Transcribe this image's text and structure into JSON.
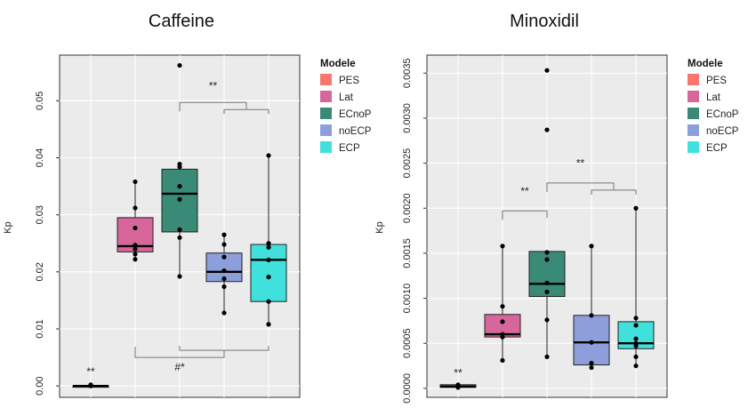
{
  "legend_title": "Modele",
  "legend_items": [
    {
      "label": "PES",
      "color": "#F8766D"
    },
    {
      "label": "Lat",
      "color": "#D7679A"
    },
    {
      "label": "ECnoP",
      "color": "#3A8A78"
    },
    {
      "label": "noECP",
      "color": "#8C9FDB"
    },
    {
      "label": "ECP",
      "color": "#40E0DC"
    }
  ],
  "chart_data": [
    {
      "type": "box",
      "title": "Caffeine",
      "ylabel": "Kp",
      "ylim": [
        -0.002,
        0.058
      ],
      "yticks": [
        0.0,
        0.01,
        0.02,
        0.03,
        0.04,
        0.05
      ],
      "ytick_labels": [
        "0.00",
        "0.01",
        "0.02",
        "0.03",
        "0.04",
        "0.05"
      ],
      "grid": true,
      "legend_position": "right",
      "categories": [
        "PES",
        "Lat",
        "ECnoP",
        "noECP",
        "ECP"
      ],
      "boxes": [
        {
          "name": "PES",
          "q1": 0.0,
          "median": 0.0,
          "q3": 0.0,
          "whisker_low": 0.0,
          "whisker_high": 0.0,
          "points": [
            0.0,
            0.0002
          ]
        },
        {
          "name": "Lat",
          "q1": 0.0235,
          "median": 0.0245,
          "q3": 0.0295,
          "whisker_low": 0.0222,
          "whisker_high": 0.0358,
          "points": [
            0.0358,
            0.0312,
            0.0277,
            0.0247,
            0.024,
            0.0231,
            0.0222
          ]
        },
        {
          "name": "ECnoP",
          "q1": 0.027,
          "median": 0.0337,
          "q3": 0.038,
          "whisker_low": 0.0192,
          "whisker_high": 0.0389,
          "points": [
            0.0562,
            0.0389,
            0.0384,
            0.035,
            0.0327,
            0.0274,
            0.026,
            0.0192
          ]
        },
        {
          "name": "noECP",
          "q1": 0.0183,
          "median": 0.02,
          "q3": 0.0233,
          "whisker_low": 0.0128,
          "whisker_high": 0.0265,
          "points": [
            0.0265,
            0.0248,
            0.0226,
            0.0202,
            0.0188,
            0.0174,
            0.0128
          ]
        },
        {
          "name": "ECP",
          "q1": 0.0148,
          "median": 0.0221,
          "q3": 0.0248,
          "whisker_low": 0.0108,
          "whisker_high": 0.0404,
          "points": [
            0.0404,
            0.025,
            0.0243,
            0.0221,
            0.0191,
            0.0148,
            0.0108
          ]
        }
      ],
      "annotations": [
        {
          "text": "**",
          "kind": "label",
          "x": 0,
          "y": 0.0019
        },
        {
          "text": "**",
          "kind": "bracket",
          "from": 2,
          "to": [
            3,
            4
          ],
          "y": 0.0497,
          "label_y": 0.052
        },
        {
          "text": "#*",
          "kind": "bracket_below",
          "from": 1,
          "to": [
            2,
            3,
            4
          ],
          "y": 0.005,
          "label_y": 0.0027
        }
      ]
    },
    {
      "type": "box",
      "title": "Minoxidil",
      "ylabel": "Kp",
      "ylim": [
        -0.0001,
        0.0037
      ],
      "yticks": [
        0.0,
        0.0005,
        0.001,
        0.0015,
        0.002,
        0.0025,
        0.003,
        0.0035
      ],
      "ytick_labels": [
        "0.0000",
        "0.0005",
        "0.0010",
        "0.0015",
        "0.0020",
        "0.0025",
        "0.0030",
        "0.0035"
      ],
      "grid": true,
      "legend_position": "right",
      "categories": [
        "PES",
        "Lat",
        "ECnoP",
        "noECP",
        "ECP"
      ],
      "boxes": [
        {
          "name": "PES",
          "q1": 1e-05,
          "median": 2e-05,
          "q3": 4e-05,
          "whisker_low": 1e-05,
          "whisker_high": 4e-05,
          "points": [
            4e-05,
            2e-05,
            1e-05
          ]
        },
        {
          "name": "Lat",
          "q1": 0.00057,
          "median": 0.0006,
          "q3": 0.00082,
          "whisker_low": 0.00031,
          "whisker_high": 0.00158,
          "points": [
            0.00158,
            0.00091,
            0.00074,
            0.0006,
            0.00057,
            0.00031
          ]
        },
        {
          "name": "ECnoP",
          "q1": 0.00102,
          "median": 0.00116,
          "q3": 0.00152,
          "whisker_low": 0.00035,
          "whisker_high": 0.00152,
          "points": [
            0.00353,
            0.00287,
            0.00151,
            0.00143,
            0.00117,
            0.00107,
            0.00076,
            0.00035
          ]
        },
        {
          "name": "noECP",
          "q1": 0.00026,
          "median": 0.00051,
          "q3": 0.00081,
          "whisker_low": 0.00023,
          "whisker_high": 0.00158,
          "points": [
            0.00158,
            0.00081,
            0.00051,
            0.00028,
            0.00023
          ]
        },
        {
          "name": "ECP",
          "q1": 0.00044,
          "median": 0.0005,
          "q3": 0.00074,
          "whisker_low": 0.00025,
          "whisker_high": 0.002,
          "points": [
            0.002,
            0.00078,
            0.0007,
            0.00055,
            0.0005,
            0.00047,
            0.00035,
            0.00025
          ]
        }
      ],
      "annotations": [
        {
          "text": "**",
          "kind": "label",
          "x": 0,
          "y": 0.00013
        },
        {
          "text": "**",
          "kind": "bracket",
          "from": 1,
          "to": [
            2
          ],
          "y": 0.00197,
          "label_y": 0.00215
        },
        {
          "text": "**",
          "kind": "bracket",
          "from": 2,
          "to": [
            3,
            4
          ],
          "y": 0.00228,
          "label_y": 0.00246
        }
      ]
    }
  ]
}
